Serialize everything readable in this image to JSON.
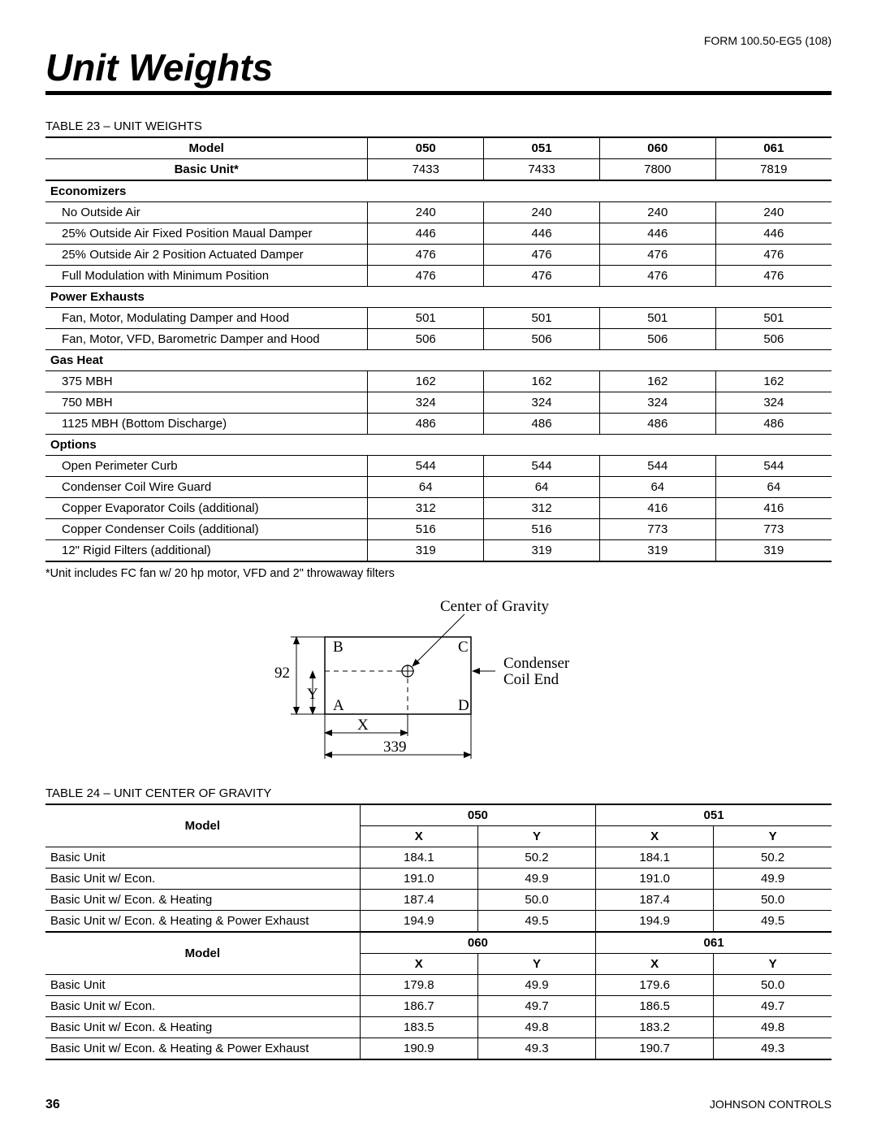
{
  "form_code": "FORM 100.50-EG5 (108)",
  "page_title": "Unit Weights",
  "table23": {
    "caption_prefix": "TABLE 23 – ",
    "caption": "UNIT WEIGHTS",
    "columns": [
      "Model",
      "050",
      "051",
      "060",
      "061"
    ],
    "basic": {
      "label": "Basic Unit*",
      "v": [
        "7433",
        "7433",
        "7800",
        "7819"
      ]
    },
    "sections": [
      {
        "title": "Economizers",
        "rows": [
          {
            "label": "No Outside Air",
            "v": [
              "240",
              "240",
              "240",
              "240"
            ]
          },
          {
            "label": "25% Outside Air Fixed Position Maual Damper",
            "v": [
              "446",
              "446",
              "446",
              "446"
            ]
          },
          {
            "label": "25% Outside Air 2 Position Actuated Damper",
            "v": [
              "476",
              "476",
              "476",
              "476"
            ]
          },
          {
            "label": "Full Modulation with Minimum Position",
            "v": [
              "476",
              "476",
              "476",
              "476"
            ]
          }
        ]
      },
      {
        "title": "Power Exhausts",
        "rows": [
          {
            "label": "Fan, Motor, Modulating Damper and Hood",
            "v": [
              "501",
              "501",
              "501",
              "501"
            ]
          },
          {
            "label": "Fan, Motor, VFD,  Barometric Damper and Hood",
            "v": [
              "506",
              "506",
              "506",
              "506"
            ]
          }
        ]
      },
      {
        "title": "Gas Heat",
        "rows": [
          {
            "label": "375 MBH",
            "v": [
              "162",
              "162",
              "162",
              "162"
            ]
          },
          {
            "label": "750 MBH",
            "v": [
              "324",
              "324",
              "324",
              "324"
            ]
          },
          {
            "label": "1125 MBH (Bottom Discharge)",
            "v": [
              "486",
              "486",
              "486",
              "486"
            ]
          }
        ]
      },
      {
        "title": "Options",
        "rows": [
          {
            "label": "Open Perimeter Curb",
            "v": [
              "544",
              "544",
              "544",
              "544"
            ]
          },
          {
            "label": "Condenser Coil Wire Guard",
            "v": [
              "64",
              "64",
              "64",
              "64"
            ]
          },
          {
            "label": "Copper Evaporator Coils (additional)",
            "v": [
              "312",
              "312",
              "416",
              "416"
            ]
          },
          {
            "label": "Copper Condenser Coils (additional)",
            "v": [
              "516",
              "516",
              "773",
              "773"
            ]
          },
          {
            "label": "12\" Rigid Filters (additional)",
            "v": [
              "319",
              "319",
              "319",
              "319"
            ]
          }
        ]
      }
    ],
    "footnote": "*Unit includes FC fan w/ 20 hp motor, VFD and 2\" throwaway filters"
  },
  "diagram": {
    "title": "Center of Gravity",
    "right_label_1": "Condenser",
    "right_label_2": "Coil End",
    "A": "A",
    "B": "B",
    "C": "C",
    "D": "D",
    "X": "X",
    "Y": "Y",
    "left_num": "92",
    "bottom_num": "339"
  },
  "table24": {
    "caption_prefix": "TABLE 24 – ",
    "caption": "UNIT CENTER OF GRAVITY",
    "model_label": "Model",
    "groups": [
      {
        "hdrs": [
          "050",
          "051"
        ],
        "rows": [
          {
            "label": "Basic Unit",
            "v": [
              "184.1",
              "50.2",
              "184.1",
              "50.2"
            ]
          },
          {
            "label": "Basic Unit w/ Econ.",
            "v": [
              "191.0",
              "49.9",
              "191.0",
              "49.9"
            ]
          },
          {
            "label": "Basic Unit w/ Econ. & Heating",
            "v": [
              "187.4",
              "50.0",
              "187.4",
              "50.0"
            ]
          },
          {
            "label": "Basic Unit w/ Econ. & Heating & Power Exhaust",
            "v": [
              "194.9",
              "49.5",
              "194.9",
              "49.5"
            ]
          }
        ]
      },
      {
        "hdrs": [
          "060",
          "061"
        ],
        "rows": [
          {
            "label": "Basic Unit",
            "v": [
              "179.8",
              "49.9",
              "179.6",
              "50.0"
            ]
          },
          {
            "label": "Basic Unit w/ Econ.",
            "v": [
              "186.7",
              "49.7",
              "186.5",
              "49.7"
            ]
          },
          {
            "label": "Basic Unit w/ Econ. & Heating",
            "v": [
              "183.5",
              "49.8",
              "183.2",
              "49.8"
            ]
          },
          {
            "label": "Basic Unit w/ Econ. & Heating & Power Exhaust",
            "v": [
              "190.9",
              "49.3",
              "190.7",
              "49.3"
            ]
          }
        ]
      }
    ],
    "xy": [
      "X",
      "Y"
    ]
  },
  "footer": {
    "page": "36",
    "company": "JOHNSON CONTROLS"
  }
}
